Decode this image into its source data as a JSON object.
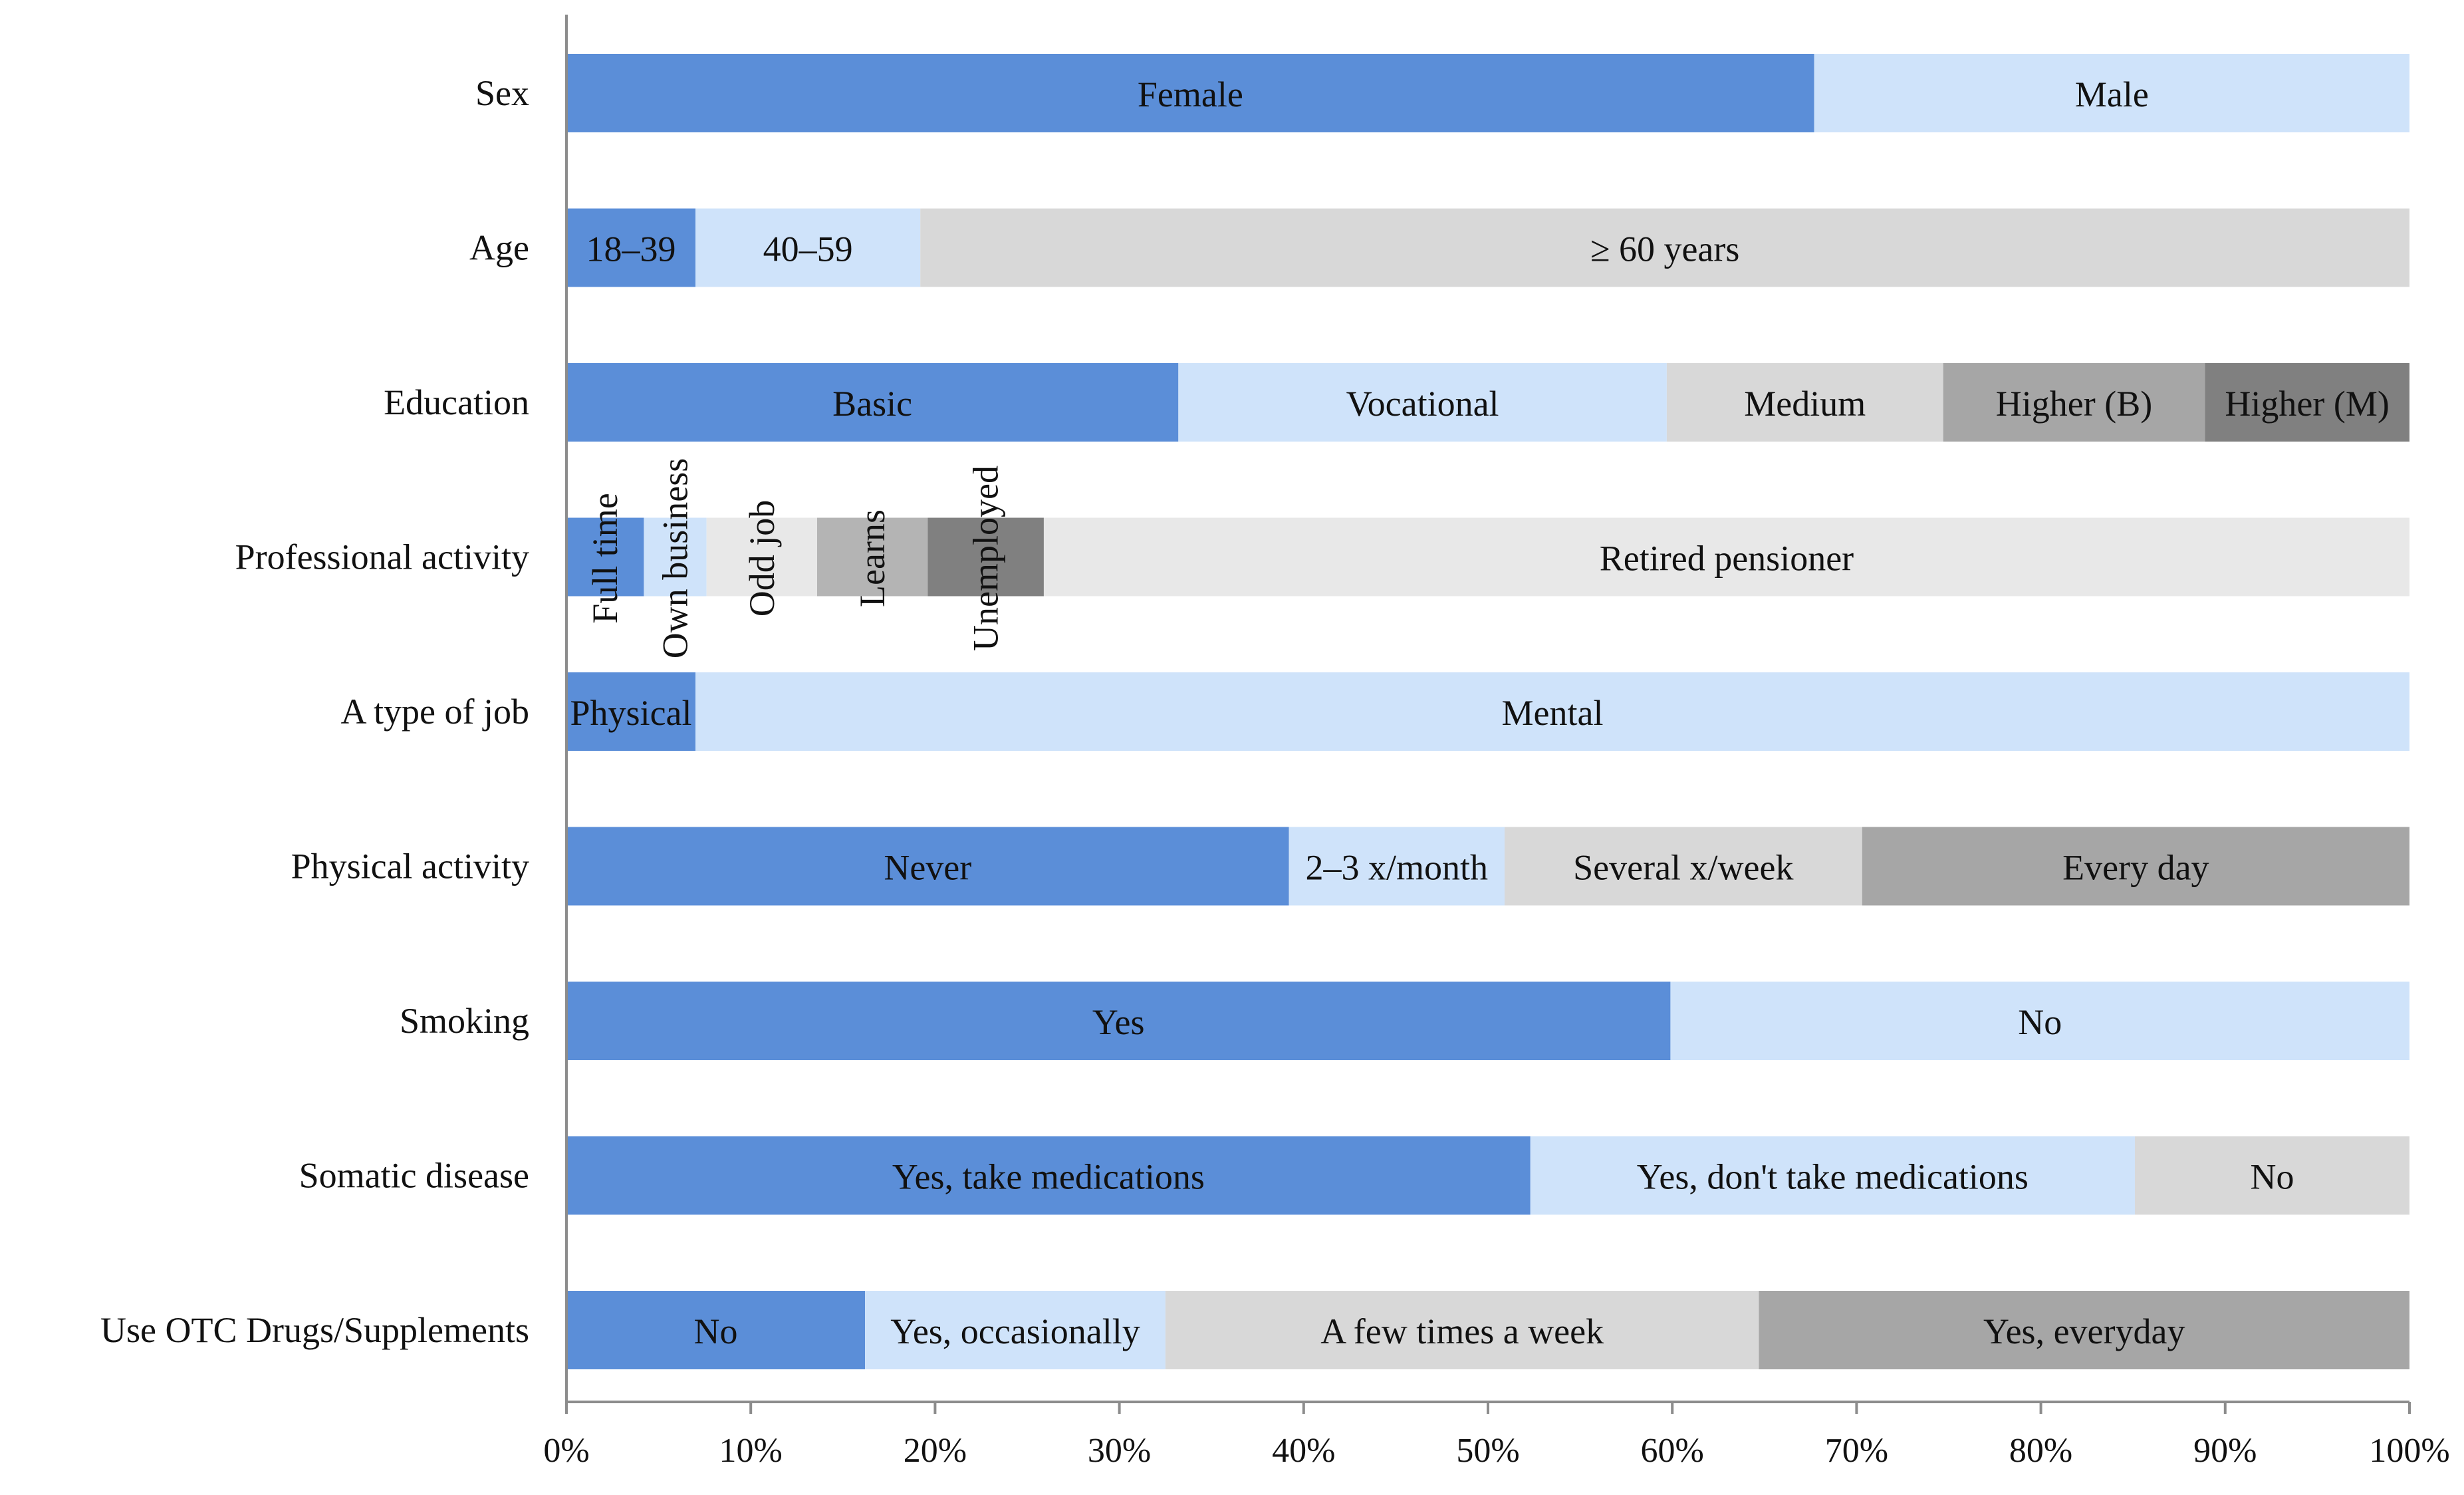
{
  "chart_data": {
    "type": "bar",
    "orientation": "horizontal",
    "stacked": true,
    "xlim": [
      0,
      100
    ],
    "x_ticks": [
      "0%",
      "10%",
      "20%",
      "30%",
      "40%",
      "50%",
      "60%",
      "70%",
      "80%",
      "90%",
      "100%"
    ],
    "x_tick_values": [
      0,
      10,
      20,
      30,
      40,
      50,
      60,
      70,
      80,
      90,
      100
    ],
    "palette": [
      "#5b8ed8",
      "#cfe3fa",
      "#d8d8d8",
      "#a6a6a6",
      "#808080"
    ],
    "palette_prof": [
      "#5b8ed8",
      "#cfe3fa",
      "#e8e8e8",
      "#b4b4b4",
      "#808080",
      "#e8e8e8"
    ],
    "axis_color": "#8c8c8c",
    "grid": false,
    "legend": "none",
    "categories": [
      "Sex",
      "Age",
      "Education",
      "Professional activity",
      "A type of job",
      "Physical activity",
      "Smoking",
      "Somatic disease",
      "Use OTC Drugs/Supplements"
    ],
    "rows": [
      {
        "category": "Sex",
        "segments": [
          {
            "label": "Female",
            "value": 67.7
          },
          {
            "label": "Male",
            "value": 32.3
          }
        ]
      },
      {
        "category": "Age",
        "segments": [
          {
            "label": "18–39",
            "value": 7.0
          },
          {
            "label": "40–59",
            "value": 12.2
          },
          {
            "label": "≥ 60 years",
            "value": 80.8
          }
        ]
      },
      {
        "category": "Education",
        "segments": [
          {
            "label": "Basic",
            "value": 33.2
          },
          {
            "label": "Vocational",
            "value": 26.5
          },
          {
            "label": "Medium",
            "value": 15.0
          },
          {
            "label": "Higher (B)",
            "value": 14.2
          },
          {
            "label": "Higher (M)",
            "value": 11.1
          }
        ]
      },
      {
        "category": "Professional activity",
        "vertical_labels": true,
        "segments": [
          {
            "label": "Full time",
            "value": 4.2
          },
          {
            "label": "Own business",
            "value": 3.4
          },
          {
            "label": "Odd job",
            "value": 6.0
          },
          {
            "label": "Learns",
            "value": 6.0
          },
          {
            "label": "Unemployed",
            "value": 6.3
          },
          {
            "label": "Retired pensioner",
            "value": 74.1
          }
        ]
      },
      {
        "category": "A type of job",
        "segments": [
          {
            "label": "Physical",
            "value": 7.0
          },
          {
            "label": "Mental",
            "value": 93.0
          }
        ]
      },
      {
        "category": "Physical activity",
        "segments": [
          {
            "label": "Never",
            "value": 39.2
          },
          {
            "label": "2–3 x/month",
            "value": 11.7
          },
          {
            "label": "Several x/week",
            "value": 19.4
          },
          {
            "label": "Every day",
            "value": 29.7
          }
        ]
      },
      {
        "category": "Smoking",
        "segments": [
          {
            "label": "Yes",
            "value": 59.9
          },
          {
            "label": "No",
            "value": 40.1
          }
        ]
      },
      {
        "category": "Somatic disease",
        "segments": [
          {
            "label": "Yes, take medications",
            "value": 52.3
          },
          {
            "label": "Yes, don't take medications",
            "value": 32.8
          },
          {
            "label": "No",
            "value": 14.9
          }
        ]
      },
      {
        "category": "Use OTC Drugs/Supplements",
        "segments": [
          {
            "label": "No",
            "value": 16.2
          },
          {
            "label": "Yes, occasionally",
            "value": 16.3
          },
          {
            "label": "A few times a week",
            "value": 32.2
          },
          {
            "label": "Yes, everyday",
            "value": 35.3
          }
        ]
      }
    ]
  }
}
